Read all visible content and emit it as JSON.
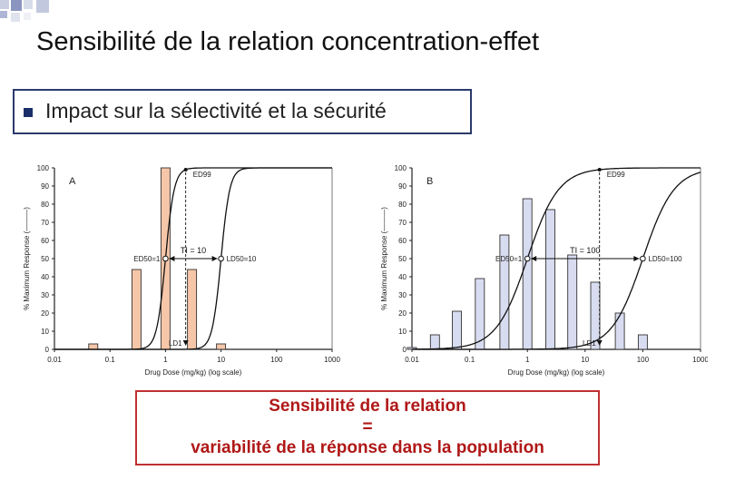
{
  "slide": {
    "title": "Sensibilité de la relation concentration-effet",
    "bullet": "Impact sur la sélectivité et la sécurité",
    "callout": {
      "line1": "Sensibilité de la relation",
      "line2": "=",
      "line3": "variabilité de la réponse dans la population"
    },
    "colors": {
      "accent_blue": "#1a2f6a",
      "callout_red": "#b01818",
      "bar_fill_a": "#f6c6a8",
      "bar_fill_b": "#d8dcf0"
    }
  },
  "chart_data": [
    {
      "type": "bar",
      "panel_label": "A",
      "xlabel": "Drug Dose (mg/kg)   (log scale)",
      "ylabel": "% Maximum Response (———)",
      "x_scale": "log",
      "xlim": [
        0.01,
        1000
      ],
      "ylim": [
        0,
        100
      ],
      "x_ticks": [
        "0.01",
        "0.1",
        "1",
        "10",
        "100",
        "1000"
      ],
      "y_ticks": [
        "0",
        "10",
        "20",
        "30",
        "40",
        "50",
        "60",
        "70",
        "80",
        "90",
        "100"
      ],
      "bars": [
        {
          "x": 0.05,
          "value": 3
        },
        {
          "x": 0.3,
          "value": 44
        },
        {
          "x": 1,
          "value": 100
        },
        {
          "x": 3,
          "value": 44
        },
        {
          "x": 10,
          "value": 3
        }
      ],
      "curves": [
        {
          "name": "ED",
          "ed50": 1,
          "slope": 5.5
        },
        {
          "name": "LD",
          "ed50": 10,
          "slope": 5.5
        }
      ],
      "annotations": {
        "ed99": "ED99",
        "ed50": "ED50=1",
        "ti": "TI = 10",
        "ld50": "LD50=10",
        "ld1": "LD1"
      }
    },
    {
      "type": "bar",
      "panel_label": "B",
      "xlabel": "Drug Dose (mg/kg)   (log scale)",
      "ylabel": "% Maximum Response (———)",
      "x_scale": "log",
      "xlim": [
        0.01,
        1000
      ],
      "ylim": [
        0,
        100
      ],
      "x_ticks": [
        "0.01",
        "0.1",
        "1",
        "10",
        "100",
        "1000"
      ],
      "y_ticks": [
        "0",
        "10",
        "20",
        "30",
        "40",
        "50",
        "60",
        "70",
        "80",
        "90",
        "100"
      ],
      "bars": [
        {
          "x": 0.01,
          "value": 1
        },
        {
          "x": 0.025,
          "value": 8
        },
        {
          "x": 0.06,
          "value": 21
        },
        {
          "x": 0.15,
          "value": 39
        },
        {
          "x": 0.4,
          "value": 63
        },
        {
          "x": 1,
          "value": 83
        },
        {
          "x": 2.5,
          "value": 77
        },
        {
          "x": 6,
          "value": 52
        },
        {
          "x": 15,
          "value": 37
        },
        {
          "x": 40,
          "value": 20
        },
        {
          "x": 100,
          "value": 8
        }
      ],
      "curves": [
        {
          "name": "ED",
          "ed50": 1,
          "slope": 1.6
        },
        {
          "name": "LD",
          "ed50": 100,
          "slope": 1.6
        }
      ],
      "annotations": {
        "ed99": "ED99",
        "ed50": "ED50=1",
        "ti": "TI = 100",
        "ld50": "LD50=100",
        "ld1": "LD1"
      }
    }
  ]
}
